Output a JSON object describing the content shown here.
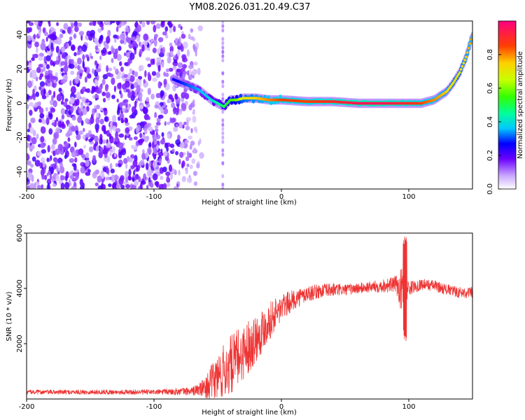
{
  "title": "YM08.2026.031.20.49.C37",
  "chart_data": [
    {
      "type": "heatmap",
      "xlabel": "Height of straight line (km)",
      "ylabel": "Frequency (Hz)",
      "xlim": [
        -200,
        150
      ],
      "ylim": [
        -50,
        48
      ],
      "x_ticks": [
        -200,
        -100,
        0,
        100
      ],
      "y_ticks": [
        -40,
        -20,
        0,
        20,
        40
      ],
      "colorbar": {
        "label": "Normalized spectral amplitude",
        "range": [
          0,
          1
        ],
        "ticks": [
          "0.0",
          "0.2",
          "0.4",
          "0.6",
          "0.8"
        ],
        "colormap": "rainbow"
      },
      "ridge": {
        "name": "dominant frequency",
        "x": [
          -85,
          -75,
          -65,
          -55,
          -50,
          -45,
          -40,
          -35,
          -30,
          -20,
          -10,
          0,
          20,
          40,
          60,
          80,
          100,
          110,
          120,
          130,
          135,
          140,
          145,
          150
        ],
        "freq": [
          14,
          11,
          8,
          2,
          0,
          -2,
          2,
          2,
          3,
          3,
          2,
          2,
          1,
          1,
          0,
          0,
          0,
          0,
          2,
          7,
          12,
          18,
          27,
          40
        ],
        "amplitude": [
          0.25,
          0.3,
          0.35,
          0.4,
          0.45,
          0.5,
          0.55,
          0.6,
          0.7,
          0.75,
          0.8,
          0.85,
          0.85,
          0.9,
          0.95,
          0.95,
          0.9,
          0.85,
          0.8,
          0.75,
          0.7,
          0.7,
          0.75,
          0.8
        ]
      },
      "noise_region": {
        "x_range": [
          -200,
          -60
        ],
        "amplitude": "0.1-0.25"
      }
    },
    {
      "type": "line",
      "xlabel": "Height of straight line (km)",
      "ylabel": "SNR (10 * v/v)",
      "xlim": [
        -200,
        150
      ],
      "ylim": [
        0,
        6000
      ],
      "x_ticks": [
        -200,
        -100,
        0,
        100
      ],
      "y_ticks": [
        2000,
        4000,
        6000
      ],
      "color": "#ee3333",
      "envelope": {
        "x": [
          -200,
          -100,
          -70,
          -60,
          -50,
          -40,
          -30,
          -20,
          -10,
          0,
          10,
          20,
          30,
          40,
          50,
          60,
          70,
          80,
          90,
          95,
          100,
          110,
          120,
          130,
          140,
          150
        ],
        "mean": [
          250,
          250,
          280,
          400,
          800,
          1200,
          1700,
          2200,
          2800,
          3300,
          3600,
          3800,
          3900,
          3950,
          3950,
          4000,
          4050,
          4100,
          4150,
          3900,
          4000,
          4150,
          4100,
          3950,
          3850,
          3850
        ],
        "spread": [
          80,
          90,
          150,
          350,
          900,
          1100,
          1000,
          900,
          700,
          500,
          350,
          300,
          250,
          250,
          200,
          200,
          200,
          250,
          300,
          900,
          250,
          200,
          200,
          200,
          200,
          200
        ]
      },
      "spikes": [
        {
          "x": 97,
          "min": 2100,
          "max": 6000
        }
      ]
    }
  ]
}
